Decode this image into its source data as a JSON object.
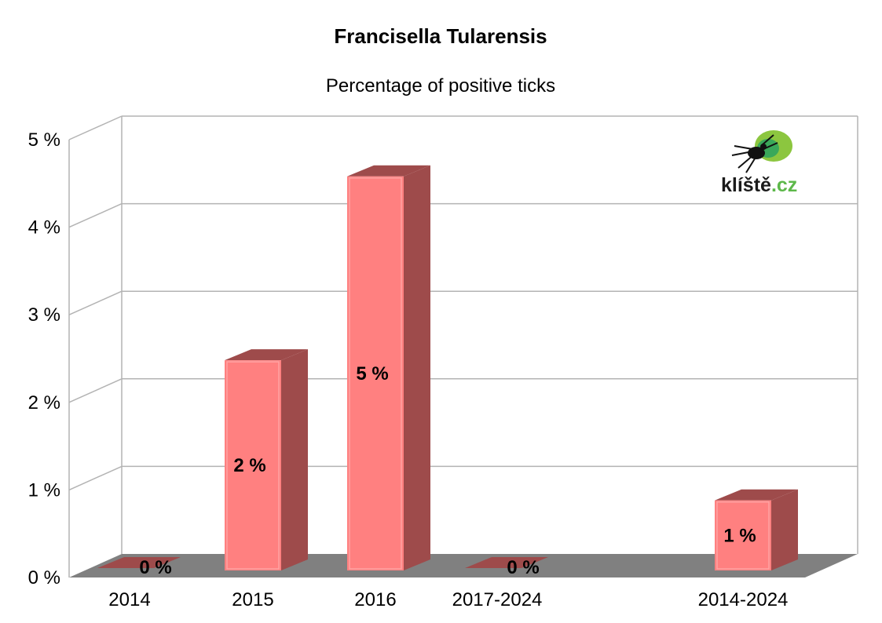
{
  "chart_data": {
    "type": "bar",
    "title": "Francisella Tularensis",
    "subtitle": "Percentage of positive ticks",
    "categories": [
      "2014",
      "2015",
      "2016",
      "2017-2024",
      "2014-2024"
    ],
    "values": [
      0,
      2.4,
      4.5,
      0,
      0.8
    ],
    "data_labels": [
      "0 %",
      "2 %",
      "5 %",
      "0 %",
      "1 %"
    ],
    "yticks": [
      "0 %",
      "1 %",
      "2 %",
      "3 %",
      "4 %",
      "5 %"
    ],
    "ylim": [
      0,
      5
    ],
    "grid": true,
    "bar_color": "#ff8080",
    "bar_side_color": "#9e4b4b",
    "floor_color": "#808080"
  },
  "logo": {
    "name": "kliste-logo",
    "text_main": "klíště",
    "text_domain": ".cz",
    "text_color": "#1a1a1a",
    "domain_color": "#5db84a"
  }
}
